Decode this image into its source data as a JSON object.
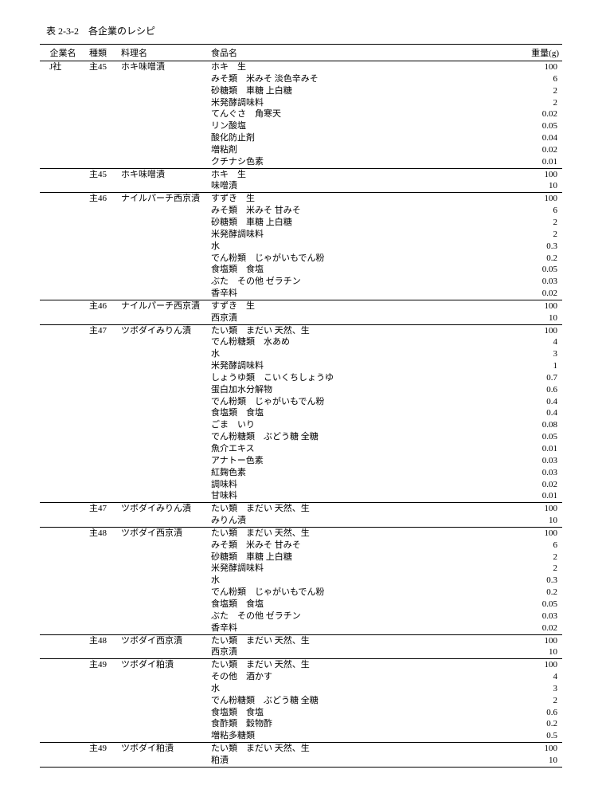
{
  "title": "表 2-3-2　各企業のレシピ",
  "columns": [
    "企業名",
    "種類",
    "料理名",
    "食品名",
    "重量(g)"
  ],
  "groups": [
    {
      "company": "J社",
      "type": "主45",
      "dish": "ホキ味噌漬",
      "rows": [
        [
          "ホキ　生",
          "100"
        ],
        [
          "みそ類　米みそ 淡色辛みそ",
          "6"
        ],
        [
          "砂糖類　車糖 上白糖",
          "2"
        ],
        [
          "米発酵調味料",
          "2"
        ],
        [
          "てんぐさ　角寒天",
          "0.02"
        ],
        [
          "リン酸塩",
          "0.05"
        ],
        [
          "酸化防止剤",
          "0.04"
        ],
        [
          "増粘剤",
          "0.02"
        ],
        [
          "クチナシ色素",
          "0.01"
        ]
      ]
    },
    {
      "company": "",
      "type": "主45",
      "dish": "ホキ味噌漬",
      "rows": [
        [
          "ホキ　生",
          "100"
        ],
        [
          "味噌漬",
          "10"
        ]
      ]
    },
    {
      "company": "",
      "type": "主46",
      "dish": "ナイルパーチ西京漬",
      "rows": [
        [
          "すずき　生",
          "100"
        ],
        [
          "みそ類　米みそ 甘みそ",
          "6"
        ],
        [
          "砂糖類　車糖 上白糖",
          "2"
        ],
        [
          "米発酵調味料",
          "2"
        ],
        [
          "水",
          "0.3"
        ],
        [
          "でん粉類　じゃがいもでん粉",
          "0.2"
        ],
        [
          "食塩類　食塩",
          "0.05"
        ],
        [
          "ぶた　その他 ゼラチン",
          "0.03"
        ],
        [
          "香辛料",
          "0.02"
        ]
      ]
    },
    {
      "company": "",
      "type": "主46",
      "dish": "ナイルパーチ西京漬",
      "rows": [
        [
          "すずき　生",
          "100"
        ],
        [
          "西京漬",
          "10"
        ]
      ]
    },
    {
      "company": "",
      "type": "主47",
      "dish": "ツボダイみりん漬",
      "rows": [
        [
          "たい類　まだい 天然、生",
          "100"
        ],
        [
          "でん粉糖類　水あめ",
          "4"
        ],
        [
          "水",
          "3"
        ],
        [
          "米発酵調味料",
          "1"
        ],
        [
          "しょうゆ類　こいくちしょうゆ",
          "0.7"
        ],
        [
          "蛋白加水分解物",
          "0.6"
        ],
        [
          "でん粉類　じゃがいもでん粉",
          "0.4"
        ],
        [
          "食塩類　食塩",
          "0.4"
        ],
        [
          "ごま　いり",
          "0.08"
        ],
        [
          "でん粉糖類　ぶどう糖 全糖",
          "0.05"
        ],
        [
          "魚介エキス",
          "0.01"
        ],
        [
          "アナトー色素",
          "0.03"
        ],
        [
          "紅麹色素",
          "0.03"
        ],
        [
          "調味料",
          "0.02"
        ],
        [
          "甘味料",
          "0.01"
        ]
      ]
    },
    {
      "company": "",
      "type": "主47",
      "dish": "ツボダイみりん漬",
      "rows": [
        [
          "たい類　まだい 天然、生",
          "100"
        ],
        [
          "みりん漬",
          "10"
        ]
      ]
    },
    {
      "company": "",
      "type": "主48",
      "dish": "ツボダイ西京漬",
      "rows": [
        [
          "たい類　まだい 天然、生",
          "100"
        ],
        [
          "みそ類　米みそ 甘みそ",
          "6"
        ],
        [
          "砂糖類　車糖 上白糖",
          "2"
        ],
        [
          "米発酵調味料",
          "2"
        ],
        [
          "水",
          "0.3"
        ],
        [
          "でん粉類　じゃがいもでん粉",
          "0.2"
        ],
        [
          "食塩類　食塩",
          "0.05"
        ],
        [
          "ぶた　その他 ゼラチン",
          "0.03"
        ],
        [
          "香辛料",
          "0.02"
        ]
      ]
    },
    {
      "company": "",
      "type": "主48",
      "dish": "ツボダイ西京漬",
      "rows": [
        [
          "たい類　まだい 天然、生",
          "100"
        ],
        [
          "西京漬",
          "10"
        ]
      ]
    },
    {
      "company": "",
      "type": "主49",
      "dish": "ツボダイ粕漬",
      "rows": [
        [
          "たい類　まだい 天然、生",
          "100"
        ],
        [
          "その他　酒かす",
          "4"
        ],
        [
          "水",
          "3"
        ],
        [
          "でん粉糖類　ぶどう糖 全糖",
          "2"
        ],
        [
          "食塩類　食塩",
          "0.6"
        ],
        [
          "食酢類　穀物酢",
          "0.2"
        ],
        [
          "増粘多糖類",
          "0.5"
        ]
      ]
    },
    {
      "company": "",
      "type": "主49",
      "dish": "ツボダイ粕漬",
      "rows": [
        [
          "たい類　まだい 天然、生",
          "100"
        ],
        [
          "粕漬",
          "10"
        ]
      ]
    }
  ]
}
